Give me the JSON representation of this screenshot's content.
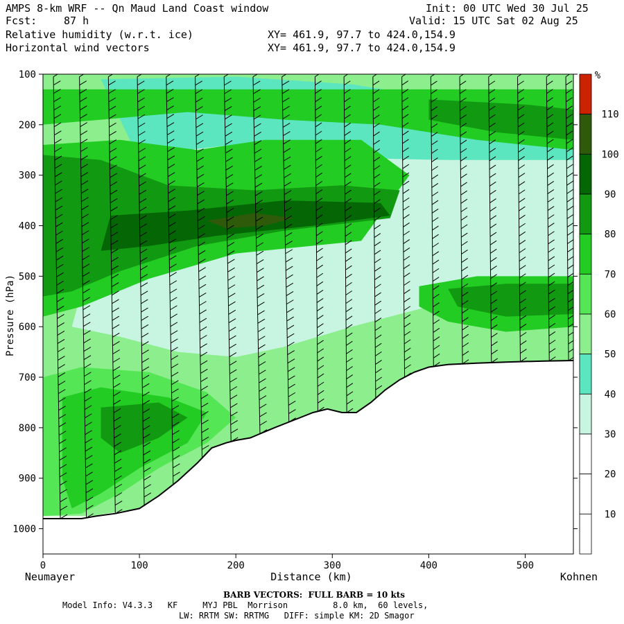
{
  "header": {
    "title": "AMPS 8-km WRF -- Qn Maud Land Coast window",
    "fcst_label": "Fcst:",
    "fcst_value": "87 h",
    "init": "Init: 00 UTC Wed 30 Jul 25",
    "valid": "Valid: 15 UTC Sat 02 Aug 25",
    "field1": "Relative humidity (w.r.t. ice)",
    "field2": "Horizontal wind vectors",
    "xy1": "XY= 461.9, 97.7 to 424.0,154.9",
    "xy2": "XY= 461.9, 97.7 to 424.0,154.9"
  },
  "footer": {
    "barb_note": "BARB VECTORS:  FULL BARB = 10 kts",
    "model_info": "Model Info: V4.3.3   KF     MYJ PBL  Morrison         8.0 km,  60 levels,",
    "physics": "LW: RRTM SW: RRTMG   DIFF: simple KM: 2D Smagor"
  },
  "chart_data": {
    "type": "heatmap",
    "xlabel": "Distance (km)",
    "ylabel": "Pressure (hPa)",
    "x_start_label": "Neumayer",
    "x_end_label": "Kohnen",
    "xlim": [
      0,
      550
    ],
    "ylim": [
      100,
      1050
    ],
    "x_ticks": [
      0,
      100,
      200,
      300,
      400,
      500
    ],
    "y_ticks": [
      100,
      200,
      300,
      400,
      500,
      600,
      700,
      800,
      900,
      1000
    ],
    "colorbar": {
      "unit": "%",
      "levels": [
        10,
        20,
        30,
        40,
        50,
        60,
        70,
        80,
        90,
        100,
        110
      ],
      "colors": [
        "#ffffff",
        "#ffffff",
        "#ffffff",
        "#c8f5e2",
        "#5ce6c0",
        "#8cee8c",
        "#55e655",
        "#22cc22",
        "#119911",
        "#056605",
        "#2e5a0a",
        "#cc2200"
      ]
    },
    "terrain_surface": [
      [
        0,
        980
      ],
      [
        20,
        980
      ],
      [
        40,
        980
      ],
      [
        55,
        975
      ],
      [
        75,
        970
      ],
      [
        100,
        960
      ],
      [
        120,
        935
      ],
      [
        140,
        905
      ],
      [
        160,
        870
      ],
      [
        175,
        840
      ],
      [
        190,
        830
      ],
      [
        200,
        825
      ],
      [
        215,
        820
      ],
      [
        240,
        800
      ],
      [
        260,
        785
      ],
      [
        280,
        770
      ],
      [
        295,
        763
      ],
      [
        310,
        770
      ],
      [
        325,
        770
      ],
      [
        340,
        750
      ],
      [
        355,
        725
      ],
      [
        370,
        705
      ],
      [
        385,
        690
      ],
      [
        400,
        680
      ],
      [
        420,
        675
      ],
      [
        450,
        672
      ],
      [
        480,
        670
      ],
      [
        520,
        668
      ],
      [
        550,
        667
      ]
    ],
    "rh_regions": [
      {
        "level": 50,
        "polygon": [
          [
            0,
            100
          ],
          [
            550,
            100
          ],
          [
            550,
            690
          ],
          [
            480,
            700
          ],
          [
            420,
            720
          ],
          [
            380,
            740
          ],
          [
            360,
            760
          ],
          [
            300,
            780
          ],
          [
            260,
            800
          ],
          [
            220,
            830
          ],
          [
            180,
            870
          ],
          [
            140,
            910
          ],
          [
            100,
            960
          ],
          [
            50,
            975
          ],
          [
            0,
            975
          ]
        ]
      },
      {
        "level": 30,
        "polygon": [
          [
            150,
            250
          ],
          [
            220,
            235
          ],
          [
            300,
            265
          ],
          [
            550,
            270
          ],
          [
            550,
            590
          ],
          [
            460,
            580
          ],
          [
            400,
            560
          ],
          [
            320,
            600
          ],
          [
            250,
            640
          ],
          [
            200,
            660
          ],
          [
            140,
            650
          ],
          [
            80,
            620
          ],
          [
            30,
            600
          ],
          [
            40,
            530
          ],
          [
            80,
            520
          ],
          [
            120,
            470
          ],
          [
            160,
            420
          ],
          [
            200,
            380
          ],
          [
            250,
            340
          ],
          [
            290,
            300
          ]
        ]
      },
      {
        "level": 40,
        "polygon": [
          [
            60,
            110
          ],
          [
            200,
            105
          ],
          [
            320,
            120
          ],
          [
            420,
            150
          ],
          [
            550,
            170
          ],
          [
            550,
            270
          ],
          [
            420,
            270
          ],
          [
            300,
            265
          ],
          [
            220,
            235
          ],
          [
            150,
            250
          ],
          [
            100,
            270
          ]
        ]
      },
      {
        "level": 70,
        "polygon": [
          [
            0,
            240
          ],
          [
            80,
            230
          ],
          [
            160,
            250
          ],
          [
            230,
            230
          ],
          [
            330,
            230
          ],
          [
            380,
            300
          ],
          [
            330,
            430
          ],
          [
            200,
            455
          ],
          [
            110,
            505
          ],
          [
            40,
            560
          ],
          [
            0,
            580
          ]
        ]
      },
      {
        "level": 80,
        "polygon": [
          [
            0,
            260
          ],
          [
            60,
            270
          ],
          [
            130,
            320
          ],
          [
            220,
            330
          ],
          [
            310,
            320
          ],
          [
            370,
            330
          ],
          [
            360,
            385
          ],
          [
            250,
            410
          ],
          [
            160,
            440
          ],
          [
            80,
            490
          ],
          [
            30,
            530
          ],
          [
            0,
            540
          ]
        ]
      },
      {
        "level": 90,
        "polygon": [
          [
            70,
            380
          ],
          [
            150,
            370
          ],
          [
            250,
            350
          ],
          [
            350,
            355
          ],
          [
            360,
            380
          ],
          [
            280,
            400
          ],
          [
            180,
            420
          ],
          [
            110,
            440
          ],
          [
            60,
            450
          ]
        ]
      },
      {
        "level": 100,
        "polygon": [
          [
            170,
            390
          ],
          [
            220,
            375
          ],
          [
            260,
            385
          ],
          [
            230,
            400
          ],
          [
            190,
            405
          ]
        ]
      },
      {
        "level": 70,
        "polygon": [
          [
            390,
            520
          ],
          [
            450,
            500
          ],
          [
            550,
            500
          ],
          [
            550,
            600
          ],
          [
            480,
            610
          ],
          [
            420,
            590
          ],
          [
            390,
            560
          ]
        ]
      },
      {
        "level": 80,
        "polygon": [
          [
            420,
            525
          ],
          [
            480,
            515
          ],
          [
            550,
            515
          ],
          [
            550,
            575
          ],
          [
            480,
            580
          ],
          [
            430,
            560
          ]
        ]
      },
      {
        "level": 60,
        "polygon": [
          [
            0,
            700
          ],
          [
            40,
            680
          ],
          [
            110,
            690
          ],
          [
            170,
            730
          ],
          [
            200,
            780
          ],
          [
            170,
            830
          ],
          [
            120,
            880
          ],
          [
            80,
            930
          ],
          [
            40,
            970
          ],
          [
            0,
            975
          ]
        ]
      },
      {
        "level": 70,
        "polygon": [
          [
            20,
            740
          ],
          [
            60,
            720
          ],
          [
            130,
            740
          ],
          [
            170,
            770
          ],
          [
            150,
            830
          ],
          [
            100,
            880
          ],
          [
            60,
            930
          ],
          [
            30,
            960
          ],
          [
            20,
            900
          ]
        ]
      },
      {
        "level": 80,
        "polygon": [
          [
            60,
            760
          ],
          [
            120,
            750
          ],
          [
            150,
            780
          ],
          [
            120,
            820
          ],
          [
            80,
            850
          ],
          [
            60,
            820
          ]
        ]
      },
      {
        "level": 70,
        "polygon": [
          [
            0,
            130
          ],
          [
            550,
            130
          ],
          [
            550,
            250
          ],
          [
            450,
            230
          ],
          [
            350,
            200
          ],
          [
            250,
            190
          ],
          [
            150,
            175
          ],
          [
            60,
            190
          ],
          [
            0,
            200
          ]
        ]
      },
      {
        "level": 80,
        "polygon": [
          [
            400,
            150
          ],
          [
            500,
            160
          ],
          [
            550,
            170
          ],
          [
            550,
            230
          ],
          [
            470,
            215
          ],
          [
            400,
            190
          ]
        ]
      }
    ],
    "barb_columns_km": [
      18,
      45,
      75,
      105,
      135,
      165,
      195,
      225,
      255,
      285,
      315,
      345,
      375,
      405,
      435,
      465,
      495,
      525,
      545
    ],
    "barb_direction": "westerly/southwesterly, increasing with height",
    "barb_speed_kts_range": [
      5,
      50
    ]
  }
}
